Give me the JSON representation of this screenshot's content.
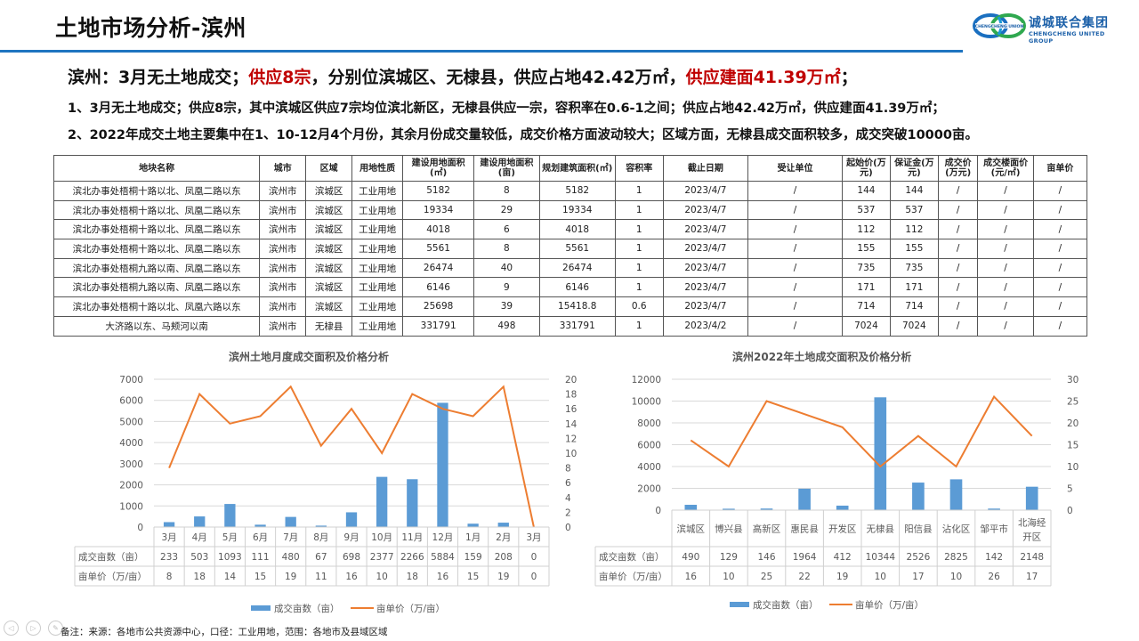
{
  "header": {
    "title": "土地市场分析-滨州",
    "accent_color": "#1f74c0",
    "logo": {
      "cn": "诚城联合集团",
      "en": "CHENGCHENG UNITED GROUP",
      "ring_text": "CHENGCHENG UNION"
    }
  },
  "headline": {
    "part1": "滨州：3月无土地成交；",
    "part2_red": "供应8宗",
    "part3": "，分别位滨城区、无棣县，供应占地42.42万㎡，",
    "part4_red": "供应建面41.39万㎡",
    "part5": "；",
    "red_color": "#c00000"
  },
  "points": [
    "1、3月无土地成交；供应8宗，其中滨城区供应7宗均位滨北新区，无棣县供应一宗，容积率在0.6-1之间；供应占地42.42万㎡，供应建面41.39万㎡；",
    "2、2022年成交土地主要集中在1、10-12月4个月份，其余月份成交量较低，成交价格方面波动较大；区域方面，无棣县成交面积较多，成交突破10000亩。"
  ],
  "table": {
    "headers": [
      "地块名称",
      "城市",
      "区域",
      "用地性质",
      "建设用地面积(㎡)",
      "建设用地面积(亩)",
      "规划建筑面积(㎡)",
      "容积率",
      "截止日期",
      "受让单位",
      "起始价(万元)",
      "保证金(万元)",
      "成交价(万元)",
      "成交楼面价(元/㎡)",
      "亩单价"
    ],
    "rows": [
      [
        "滨北办事处梧桐十路以北、凤凰二路以东",
        "滨州市",
        "滨城区",
        "工业用地",
        "5182",
        "8",
        "5182",
        "1",
        "2023/4/7",
        "/",
        "144",
        "144",
        "/",
        "/",
        "/"
      ],
      [
        "滨北办事处梧桐十路以北、凤凰二路以东",
        "滨州市",
        "滨城区",
        "工业用地",
        "19334",
        "29",
        "19334",
        "1",
        "2023/4/7",
        "/",
        "537",
        "537",
        "/",
        "/",
        "/"
      ],
      [
        "滨北办事处梧桐十路以北、凤凰二路以东",
        "滨州市",
        "滨城区",
        "工业用地",
        "4018",
        "6",
        "4018",
        "1",
        "2023/4/7",
        "/",
        "112",
        "112",
        "/",
        "/",
        "/"
      ],
      [
        "滨北办事处梧桐十路以北、凤凰二路以东",
        "滨州市",
        "滨城区",
        "工业用地",
        "5561",
        "8",
        "5561",
        "1",
        "2023/4/7",
        "/",
        "155",
        "155",
        "/",
        "/",
        "/"
      ],
      [
        "滨北办事处梧桐九路以南、凤凰二路以东",
        "滨州市",
        "滨城区",
        "工业用地",
        "26474",
        "40",
        "26474",
        "1",
        "2023/4/7",
        "/",
        "735",
        "735",
        "/",
        "/",
        "/"
      ],
      [
        "滨北办事处梧桐九路以南、凤凰二路以东",
        "滨州市",
        "滨城区",
        "工业用地",
        "6146",
        "9",
        "6146",
        "1",
        "2023/4/7",
        "/",
        "171",
        "171",
        "/",
        "/",
        "/"
      ],
      [
        "滨北办事处梧桐十路以北、凤凰六路以东",
        "滨州市",
        "滨城区",
        "工业用地",
        "25698",
        "39",
        "15418.8",
        "0.6",
        "2023/4/7",
        "/",
        "714",
        "714",
        "/",
        "/",
        "/"
      ],
      [
        "大济路以东、马颊河以南",
        "滨州市",
        "无棣县",
        "工业用地",
        "331791",
        "498",
        "331791",
        "1",
        "2023/4/2",
        "/",
        "7024",
        "7024",
        "/",
        "/",
        "/"
      ]
    ]
  },
  "chart_data": [
    {
      "type": "bar+line",
      "title": "滨州土地月度成交面积及价格分析",
      "categories": [
        "3月",
        "4月",
        "5月",
        "6月",
        "7月",
        "8月",
        "9月",
        "10月",
        "11月",
        "12月",
        "1月",
        "2月",
        "3月"
      ],
      "series": [
        {
          "name": "成交亩数（亩）",
          "type": "bar",
          "axis": "left",
          "color": "#5b9bd5",
          "values": [
            233,
            503,
            1093,
            111,
            480,
            67,
            698,
            2377,
            2266,
            5884,
            159,
            208,
            0
          ]
        },
        {
          "name": "亩单价（万/亩）",
          "type": "line",
          "axis": "right",
          "color": "#ed7d31",
          "values": [
            8,
            18,
            14,
            15,
            19,
            11,
            16,
            10,
            18,
            16,
            15,
            19,
            0
          ]
        }
      ],
      "ylim_left": [
        0,
        7000
      ],
      "yticks_left": [
        0,
        1000,
        2000,
        3000,
        4000,
        5000,
        6000,
        7000
      ],
      "ylim_right": [
        0,
        20
      ],
      "yticks_right": [
        0,
        2,
        4,
        6,
        8,
        10,
        12,
        14,
        16,
        18,
        20
      ],
      "grid": true,
      "data_table": true,
      "legend_position": "bottom"
    },
    {
      "type": "bar+line",
      "title": "滨州2022年土地成交面积及价格分析",
      "categories": [
        "滨城区",
        "博兴县",
        "高新区",
        "惠民县",
        "开发区",
        "无棣县",
        "阳信县",
        "沾化区",
        "邹平市",
        "北海经开区"
      ],
      "series": [
        {
          "name": "成交亩数（亩）",
          "type": "bar",
          "axis": "left",
          "color": "#5b9bd5",
          "values": [
            490,
            129,
            146,
            1964,
            412,
            10344,
            2526,
            2825,
            142,
            2148
          ]
        },
        {
          "name": "亩单价（万/亩）",
          "type": "line",
          "axis": "right",
          "color": "#ed7d31",
          "values": [
            16,
            10,
            25,
            22,
            19,
            10,
            17,
            10,
            26,
            17
          ]
        }
      ],
      "ylim_left": [
        0,
        12000
      ],
      "yticks_left": [
        0,
        2000,
        4000,
        6000,
        8000,
        10000,
        12000
      ],
      "ylim_right": [
        0,
        30
      ],
      "yticks_right": [
        0,
        5,
        10,
        15,
        20,
        25,
        30
      ],
      "grid": true,
      "data_table": true,
      "legend_position": "bottom"
    }
  ],
  "charts_ui": {
    "row_label_area": "成交亩数（亩）",
    "row_label_price": "亩单价（万/亩）",
    "legend_bar": "成交亩数（亩）",
    "legend_line": "亩单价（万/亩）",
    "right_cat_last_line1": "北海经",
    "right_cat_last_line2": "开区"
  },
  "footer": {
    "note": "备注：来源：各地市公共资源中心，口径：工业用地，范围：各地市及县域区域",
    "nav": [
      "prev-icon",
      "next-icon",
      "pen-icon",
      "menu-icon",
      "zoom-icon"
    ]
  }
}
